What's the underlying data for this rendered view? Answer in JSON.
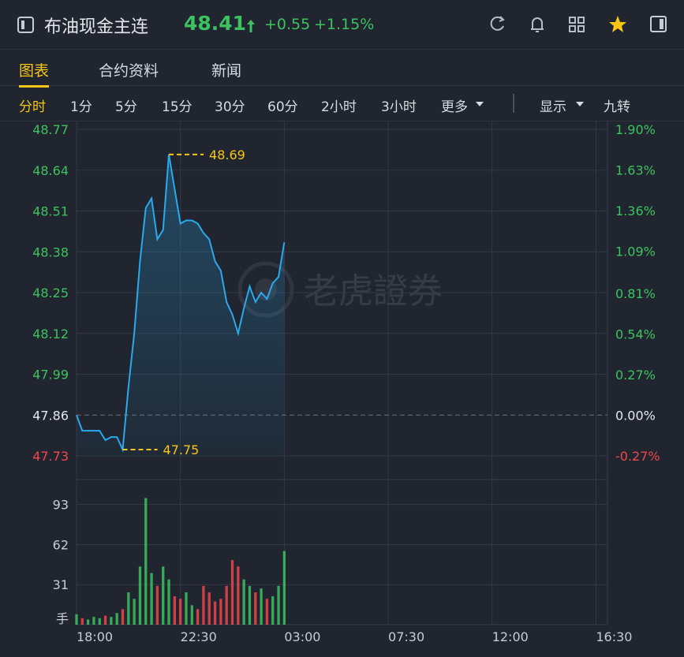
{
  "header": {
    "title": "布油现金主连",
    "price": 48.41,
    "change": "+0.55",
    "change_pct": "+1.15%"
  },
  "tabs": [
    "图表",
    "合约资料",
    "新闻"
  ],
  "timeframes": [
    "分时",
    "1分",
    "5分",
    "15分",
    "30分",
    "60分",
    "2小时",
    "3小时",
    "更多"
  ],
  "tools": [
    "显示",
    "九转"
  ],
  "watermark": "老虎證券",
  "chart_data": {
    "type": "line",
    "color": "#2aa9ec",
    "up_color": "#3cc35f",
    "down_color": "#f0474b",
    "x": [
      "18:00",
      "18:15",
      "18:30",
      "18:45",
      "19:00",
      "19:15",
      "19:30",
      "19:45",
      "20:00",
      "20:15",
      "20:30",
      "20:45",
      "21:00",
      "21:15",
      "21:30",
      "21:45",
      "22:00",
      "22:15",
      "22:30",
      "22:45",
      "23:00",
      "23:15",
      "23:30",
      "23:45",
      "00:00",
      "00:15",
      "00:30",
      "00:45",
      "01:00",
      "01:15",
      "01:30",
      "01:45",
      "02:00",
      "02:15",
      "02:30",
      "02:45",
      "03:00"
    ],
    "values": [
      47.86,
      47.81,
      47.81,
      47.81,
      47.81,
      47.78,
      47.79,
      47.79,
      47.75,
      47.95,
      48.12,
      48.35,
      48.52,
      48.55,
      48.42,
      48.45,
      48.69,
      48.58,
      48.47,
      48.48,
      48.48,
      48.47,
      48.44,
      48.42,
      48.35,
      48.32,
      48.22,
      48.18,
      48.12,
      48.2,
      48.27,
      48.22,
      48.25,
      48.23,
      48.28,
      48.3,
      48.41
    ],
    "xlim": [
      "18:00",
      "17:00"
    ],
    "xticks": [
      "18:00",
      "22:30",
      "03:00",
      "07:30",
      "12:00",
      "16:30"
    ],
    "ylim": [
      47.73,
      48.77
    ],
    "yticks": [
      48.77,
      48.64,
      48.51,
      48.38,
      48.25,
      48.12,
      47.99,
      47.86,
      47.73
    ],
    "base": 47.86,
    "y2lim": [
      -0.27,
      1.9
    ],
    "y2ticks": [
      {
        "value": 1.9,
        "label": "1.90%"
      },
      {
        "value": 1.63,
        "label": "1.63%"
      },
      {
        "value": 1.36,
        "label": "1.36%"
      },
      {
        "value": 1.09,
        "label": "1.09%"
      },
      {
        "value": 0.81,
        "label": "0.81%"
      },
      {
        "value": 0.54,
        "label": "0.54%"
      },
      {
        "value": 0.27,
        "label": "0.27%"
      },
      {
        "value": 0,
        "label": "0.00%"
      },
      {
        "value": -0.27,
        "label": "-0.27%"
      }
    ],
    "annotations": [
      {
        "x": "22:00",
        "y": 48.69
      },
      {
        "x": "20:00",
        "y": 47.75
      }
    ],
    "grid": true,
    "volume": {
      "values": [
        8,
        5,
        4,
        6,
        5,
        7,
        6,
        9,
        12,
        25,
        20,
        45,
        98,
        40,
        30,
        45,
        35,
        22,
        20,
        25,
        15,
        12,
        30,
        25,
        18,
        20,
        30,
        50,
        45,
        35,
        30,
        25,
        28,
        20,
        22,
        30,
        57
      ],
      "ylim": [
        0,
        105
      ],
      "yticks": [
        31,
        62,
        93
      ],
      "unit": "手"
    }
  }
}
